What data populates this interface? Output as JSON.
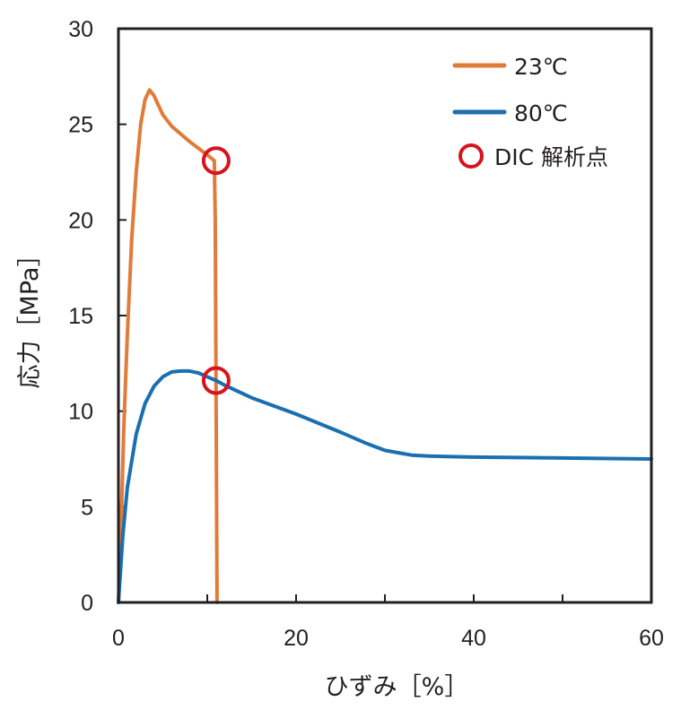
{
  "chart_data": {
    "type": "line",
    "xlabel": "ひずみ［%］",
    "ylabel": "応力［MPa］",
    "xlim": [
      0,
      60
    ],
    "ylim": [
      0,
      30
    ],
    "x_ticks": [
      "0",
      "20",
      "40",
      "60"
    ],
    "y_ticks": [
      "0",
      "5",
      "10",
      "15",
      "20",
      "25",
      "30"
    ],
    "grid": false,
    "legend_position": "top-right",
    "series": [
      {
        "name": "23℃",
        "color": "#e07b3a",
        "points": [
          [
            0,
            0
          ],
          [
            0.3,
            4
          ],
          [
            0.6,
            9
          ],
          [
            1,
            14
          ],
          [
            1.5,
            19
          ],
          [
            2,
            22.5
          ],
          [
            2.5,
            25
          ],
          [
            3,
            26.3
          ],
          [
            3.5,
            26.8
          ],
          [
            4,
            26.5
          ],
          [
            5,
            25.5
          ],
          [
            6,
            24.9
          ],
          [
            8,
            24.1
          ],
          [
            10,
            23.4
          ],
          [
            10.8,
            23.1
          ],
          [
            10.9,
            20
          ],
          [
            11,
            10
          ],
          [
            11.1,
            0
          ]
        ]
      },
      {
        "name": "80℃",
        "color": "#1a6fb0",
        "points": [
          [
            0,
            0
          ],
          [
            0.5,
            3.5
          ],
          [
            1,
            6
          ],
          [
            2,
            8.8
          ],
          [
            3,
            10.4
          ],
          [
            4,
            11.3
          ],
          [
            5,
            11.8
          ],
          [
            6,
            12.05
          ],
          [
            7,
            12.1
          ],
          [
            8,
            12.1
          ],
          [
            9,
            12
          ],
          [
            10,
            11.8
          ],
          [
            11,
            11.6
          ],
          [
            12,
            11.35
          ],
          [
            15,
            10.7
          ],
          [
            20,
            9.85
          ],
          [
            25,
            8.9
          ],
          [
            28,
            8.3
          ],
          [
            30,
            7.95
          ],
          [
            33,
            7.7
          ],
          [
            35,
            7.65
          ],
          [
            40,
            7.6
          ],
          [
            50,
            7.55
          ],
          [
            60,
            7.5
          ]
        ]
      }
    ],
    "markers": {
      "label": "DIC 解析点",
      "color": "#d7141e",
      "points": [
        [
          11,
          23.1
        ],
        [
          11,
          11.6
        ]
      ]
    }
  }
}
